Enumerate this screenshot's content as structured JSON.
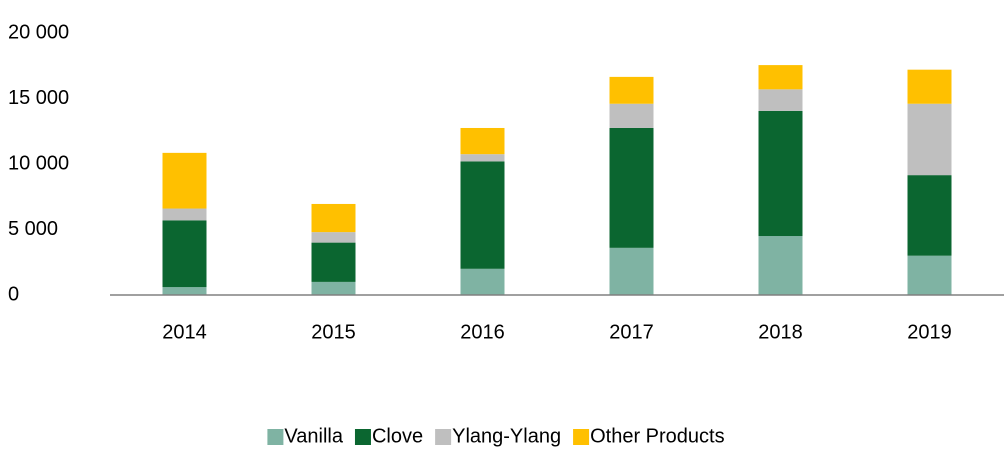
{
  "chart_data": {
    "type": "stacked_bar",
    "categories": [
      "2014",
      "2015",
      "2016",
      "2017",
      "2018",
      "2019"
    ],
    "series": [
      {
        "name": "Vanilla",
        "color": "#7fb3a3",
        "values": [
          600,
          1000,
          2000,
          3600,
          4500,
          3000
        ]
      },
      {
        "name": "Clove",
        "color": "#0b6630",
        "values": [
          5100,
          3000,
          8200,
          9150,
          9550,
          6150
        ]
      },
      {
        "name": "Ylang-Ylang",
        "color": "#bfbfbf",
        "values": [
          900,
          800,
          550,
          1850,
          1650,
          5450
        ]
      },
      {
        "name": "Other Products",
        "color": "#ffc000",
        "values": [
          4250,
          2150,
          2000,
          2050,
          1850,
          2600
        ]
      }
    ],
    "ylim": [
      0,
      20000
    ],
    "yticks": [
      0,
      {
        "value": 5000,
        "label": "5 000"
      },
      {
        "value": 10000,
        "label": "10 000"
      },
      {
        "value": 15000,
        "label": "15 000"
      },
      {
        "value": 20000,
        "label": "20 000"
      }
    ],
    "grid": false,
    "legend": "bottom"
  }
}
